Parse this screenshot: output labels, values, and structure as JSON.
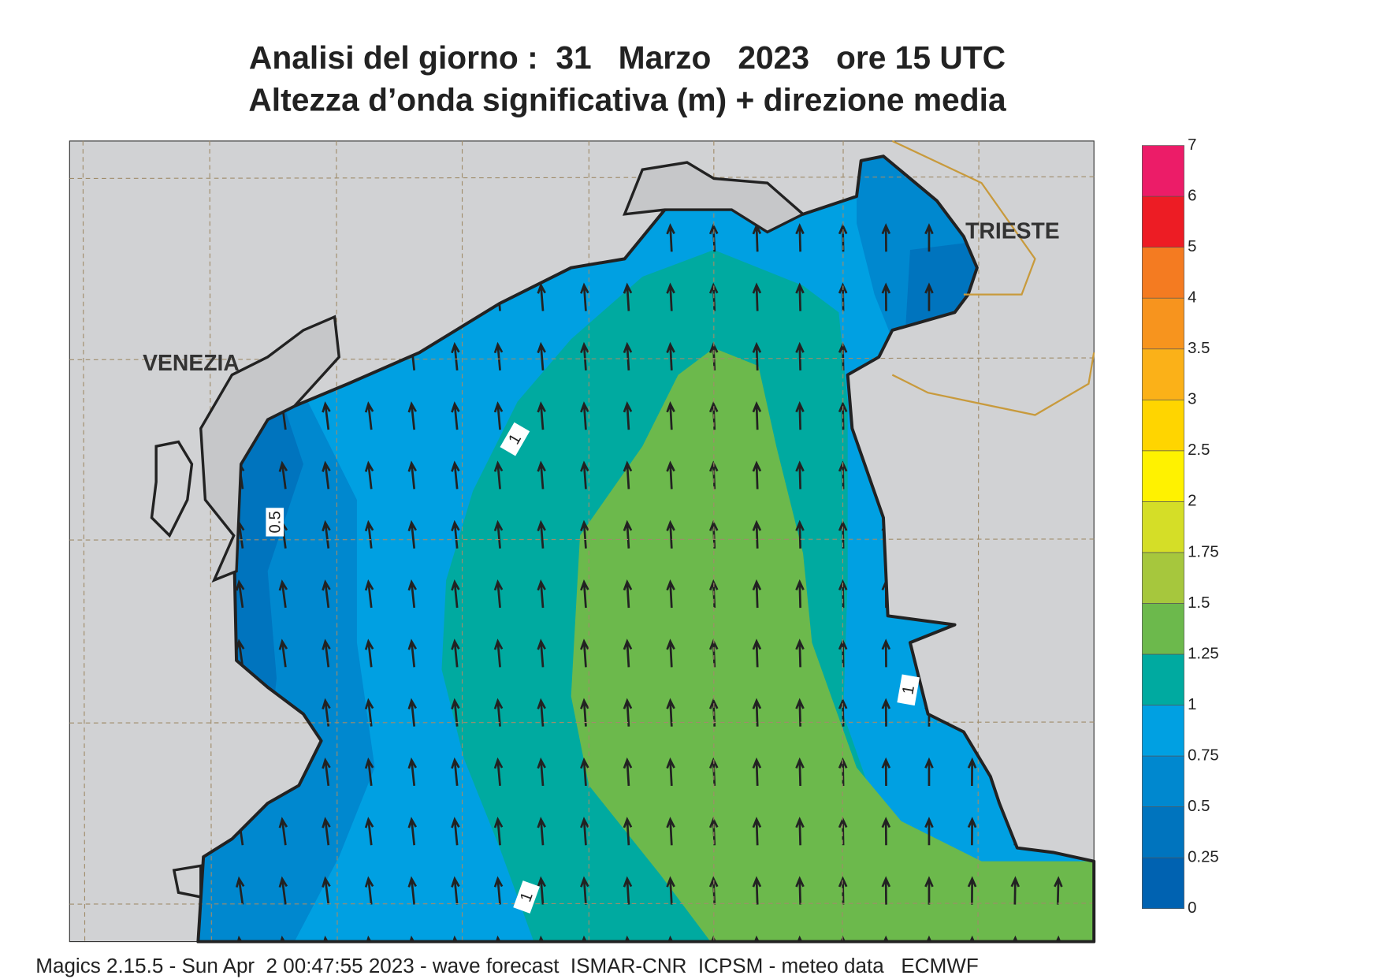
{
  "title": [
    "Analisi del giorno :  31   Marzo   2023   ore 15 UTC",
    "Altezza d’onda significativa (m) + direzione media"
  ],
  "places": [
    "VENEZIA",
    "TRIESTE"
  ],
  "contour_labels": [
    1,
    0.5,
    1,
    1
  ],
  "legend": {
    "levels": [
      0,
      0.25,
      0.5,
      0.75,
      1,
      1.25,
      1.5,
      1.75,
      2,
      2.5,
      3,
      3.5,
      4,
      5,
      6,
      7
    ],
    "colors": [
      "#0062b1",
      "#0074be",
      "#0088cf",
      "#00a0e2",
      "#00aaa0",
      "#6cb94c",
      "#a6c73d",
      "#d5de27",
      "#fff200",
      "#ffd500",
      "#fbb118",
      "#f7941e",
      "#f47b21",
      "#ed1c24",
      "#ec1c68"
    ]
  },
  "footer": "Magics 2.15.5 - Sun Apr  2 00:47:55 2023 - wave forecast  ISMAR-CNR  ICPSM - meteo data   ECMWF"
}
